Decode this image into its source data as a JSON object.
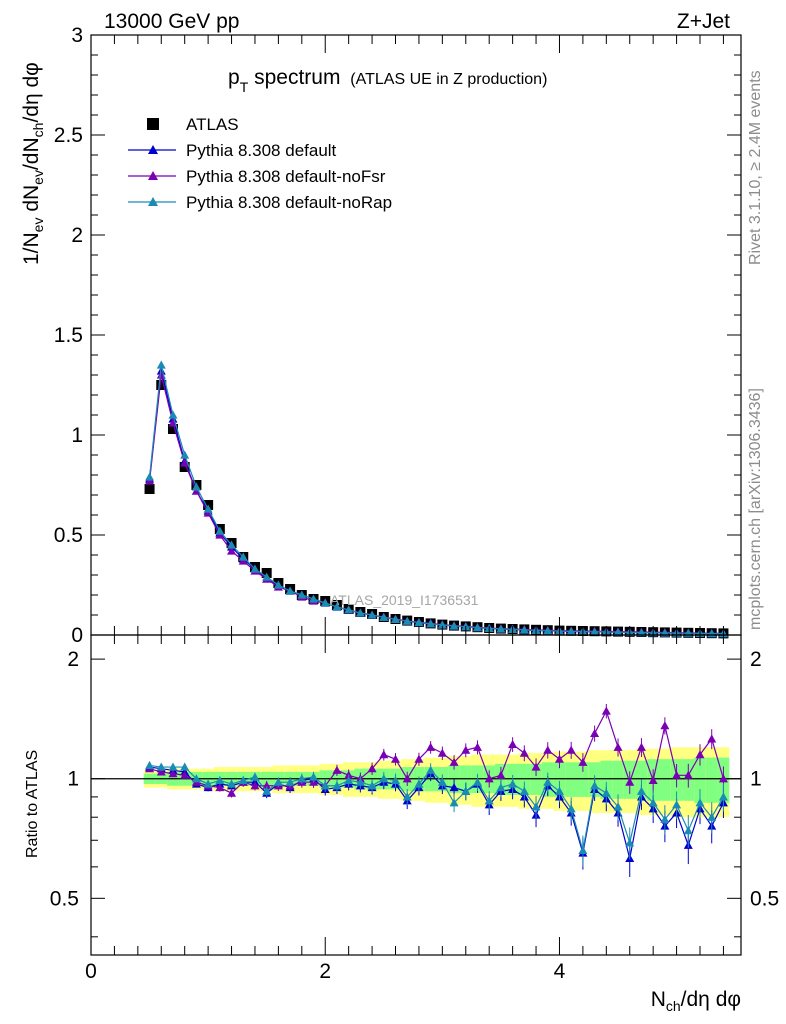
{
  "header": {
    "left": "13000 GeV pp",
    "right": "Z+Jet"
  },
  "plot_title": {
    "main": "p",
    "sub": "T",
    "main_rest": " spectrum",
    "small": "(ATLAS UE in Z production)"
  },
  "watermark": "ATLAS_2019_I1736531",
  "side_text": {
    "rivet": "Rivet 3.1.10, ≥ 2.4M events",
    "mcplots": "mcplots.cern.ch [arXiv:1306.3436]"
  },
  "ylabel_top": "1/N_ev dN_ev/dN_ch/dη dφ",
  "ylabel_top_parts": [
    "1/N",
    "ev",
    " dN",
    "ev",
    "/dN",
    "ch",
    "/dη dφ"
  ],
  "ylabel_bottom": "Ratio to ATLAS",
  "xlabel_parts": [
    "N",
    "ch",
    "/dη dφ"
  ],
  "legend": [
    {
      "label": "ATLAS",
      "marker": "square",
      "color": "#000000"
    },
    {
      "label": "Pythia 8.308 default",
      "marker": "triangle",
      "color": "#0000cc"
    },
    {
      "label": "Pythia 8.308 default-noFsr",
      "marker": "triangle",
      "color": "#7a00b3"
    },
    {
      "label": "Pythia 8.308 default-noRap",
      "marker": "triangle",
      "color": "#1a8cb3"
    }
  ],
  "chart_data": {
    "type": "line",
    "x": [
      0.5,
      0.6,
      0.7,
      0.8,
      0.9,
      1.0,
      1.1,
      1.2,
      1.3,
      1.4,
      1.5,
      1.6,
      1.7,
      1.8,
      1.9,
      2.0,
      2.1,
      2.2,
      2.3,
      2.4,
      2.5,
      2.6,
      2.7,
      2.8,
      2.9,
      3.0,
      3.1,
      3.2,
      3.3,
      3.4,
      3.5,
      3.6,
      3.7,
      3.8,
      3.9,
      4.0,
      4.1,
      4.2,
      4.3,
      4.4,
      4.5,
      4.6,
      4.7,
      4.8,
      4.9,
      5.0,
      5.1,
      5.2,
      5.3,
      5.4
    ],
    "xlim": [
      0,
      5.55
    ],
    "top": {
      "ylim": [
        0,
        3
      ],
      "yticks": [
        0,
        0.5,
        1,
        1.5,
        2,
        2.5,
        3
      ],
      "yticklabels": [
        "0",
        "0.5",
        "1",
        "1.5",
        "2",
        "2.5",
        "3"
      ],
      "data": [
        0.73,
        1.25,
        1.03,
        0.84,
        0.75,
        0.65,
        0.53,
        0.46,
        0.39,
        0.34,
        0.31,
        0.26,
        0.23,
        0.2,
        0.18,
        0.17,
        0.15,
        0.13,
        0.115,
        0.105,
        0.09,
        0.08,
        0.072,
        0.065,
        0.058,
        0.052,
        0.047,
        0.043,
        0.039,
        0.035,
        0.032,
        0.03,
        0.028,
        0.026,
        0.024,
        0.022,
        0.021,
        0.02,
        0.019,
        0.018,
        0.017,
        0.016,
        0.015,
        0.014,
        0.013,
        0.012,
        0.011,
        0.01,
        0.009,
        0.008
      ],
      "series": [
        {
          "name": "Pythia 8.308 default",
          "color": "#0000cc",
          "values": [
            0.78,
            1.32,
            1.08,
            0.87,
            0.72,
            0.62,
            0.51,
            0.44,
            0.38,
            0.33,
            0.28,
            0.25,
            0.22,
            0.2,
            0.18,
            0.16,
            0.14,
            0.125,
            0.11,
            0.1,
            0.088,
            0.078,
            0.068,
            0.062,
            0.056,
            0.05,
            0.045,
            0.041,
            0.037,
            0.033,
            0.03,
            0.028,
            0.025,
            0.023,
            0.021,
            0.019,
            0.018,
            0.017,
            0.016,
            0.015,
            0.014,
            0.013,
            0.012,
            0.011,
            0.01,
            0.009,
            0.009,
            0.008,
            0.007,
            0.007
          ]
        },
        {
          "name": "Pythia 8.308 default-noFsr",
          "color": "#7a00b3",
          "values": [
            0.77,
            1.3,
            1.06,
            0.86,
            0.72,
            0.61,
            0.5,
            0.42,
            0.37,
            0.32,
            0.28,
            0.24,
            0.22,
            0.19,
            0.17,
            0.16,
            0.14,
            0.125,
            0.11,
            0.1,
            0.09,
            0.08,
            0.07,
            0.064,
            0.058,
            0.052,
            0.047,
            0.043,
            0.039,
            0.035,
            0.032,
            0.03,
            0.028,
            0.026,
            0.024,
            0.022,
            0.021,
            0.02,
            0.019,
            0.018,
            0.017,
            0.016,
            0.015,
            0.014,
            0.013,
            0.012,
            0.011,
            0.01,
            0.009,
            0.008
          ]
        },
        {
          "name": "Pythia 8.308 default-noRap",
          "color": "#1a8cb3",
          "values": [
            0.79,
            1.35,
            1.1,
            0.9,
            0.74,
            0.63,
            0.52,
            0.45,
            0.39,
            0.33,
            0.29,
            0.25,
            0.22,
            0.2,
            0.18,
            0.16,
            0.14,
            0.126,
            0.11,
            0.1,
            0.088,
            0.078,
            0.069,
            0.062,
            0.056,
            0.05,
            0.045,
            0.041,
            0.037,
            0.033,
            0.03,
            0.028,
            0.025,
            0.023,
            0.021,
            0.019,
            0.018,
            0.017,
            0.016,
            0.015,
            0.014,
            0.013,
            0.012,
            0.011,
            0.01,
            0.009,
            0.009,
            0.008,
            0.007,
            0.007
          ]
        }
      ]
    },
    "bottom": {
      "ylabel": "Ratio to ATLAS",
      "ylim": [
        0.36,
        2.3
      ],
      "yticks": [
        0.5,
        1,
        2
      ],
      "yticklabels": [
        "0.5",
        "1",
        "2"
      ],
      "band_inner": [
        0.03,
        0.03,
        0.04,
        0.04,
        0.04,
        0.04,
        0.04,
        0.04,
        0.04,
        0.04,
        0.04,
        0.04,
        0.04,
        0.04,
        0.04,
        0.05,
        0.05,
        0.05,
        0.06,
        0.06,
        0.06,
        0.06,
        0.07,
        0.07,
        0.07,
        0.07,
        0.08,
        0.08,
        0.08,
        0.08,
        0.09,
        0.09,
        0.09,
        0.09,
        0.1,
        0.1,
        0.1,
        0.1,
        0.1,
        0.11,
        0.11,
        0.11,
        0.11,
        0.12,
        0.12,
        0.12,
        0.12,
        0.13,
        0.13,
        0.13
      ],
      "band_outer": [
        0.05,
        0.05,
        0.06,
        0.06,
        0.06,
        0.06,
        0.07,
        0.07,
        0.07,
        0.07,
        0.07,
        0.08,
        0.08,
        0.08,
        0.08,
        0.09,
        0.09,
        0.1,
        0.1,
        0.1,
        0.11,
        0.11,
        0.12,
        0.12,
        0.13,
        0.13,
        0.14,
        0.14,
        0.15,
        0.15,
        0.15,
        0.15,
        0.16,
        0.16,
        0.16,
        0.17,
        0.17,
        0.17,
        0.18,
        0.18,
        0.18,
        0.18,
        0.19,
        0.19,
        0.19,
        0.2,
        0.2,
        0.2,
        0.2,
        0.2
      ],
      "series": [
        {
          "name": "Pythia 8.308 default",
          "color": "#0000cc",
          "values": [
            1.07,
            1.06,
            1.05,
            1.04,
            0.97,
            0.95,
            0.97,
            0.96,
            0.98,
            0.98,
            0.92,
            0.97,
            0.95,
            0.99,
            1.0,
            0.94,
            0.95,
            0.97,
            0.96,
            0.95,
            0.98,
            0.97,
            0.88,
            0.95,
            1.03,
            0.96,
            0.95,
            0.93,
            0.97,
            0.86,
            0.93,
            0.94,
            0.9,
            0.81,
            0.96,
            0.9,
            0.82,
            0.65,
            0.94,
            0.89,
            0.82,
            0.63,
            0.9,
            0.84,
            0.76,
            0.82,
            0.68,
            0.84,
            0.76,
            0.87
          ]
        },
        {
          "name": "Pythia 8.308 default-noFsr",
          "color": "#7a00b3",
          "values": [
            1.06,
            1.04,
            1.03,
            1.02,
            0.98,
            0.96,
            0.95,
            0.92,
            0.98,
            0.96,
            0.96,
            0.96,
            0.96,
            0.98,
            0.98,
            0.96,
            1.05,
            1.02,
            1.0,
            1.06,
            1.15,
            1.12,
            1.0,
            1.12,
            1.2,
            1.16,
            1.1,
            1.18,
            1.2,
            1.0,
            1.02,
            1.22,
            1.16,
            1.07,
            1.18,
            1.12,
            1.18,
            1.1,
            1.3,
            1.48,
            1.2,
            0.98,
            1.2,
            0.99,
            1.36,
            1.02,
            1.02,
            1.15,
            1.26,
            1.0
          ]
        },
        {
          "name": "Pythia 8.308 default-noRap",
          "color": "#1a8cb3",
          "values": [
            1.08,
            1.07,
            1.07,
            1.07,
            1.0,
            0.97,
            0.99,
            0.97,
            0.99,
            1.01,
            0.93,
            0.98,
            0.98,
            1.0,
            1.01,
            0.96,
            0.96,
            0.99,
            0.98,
            0.96,
            1.0,
            0.99,
            0.9,
            0.97,
            1.05,
            0.98,
            0.87,
            0.93,
            0.98,
            0.88,
            0.95,
            0.97,
            0.93,
            0.85,
            0.98,
            0.93,
            0.84,
            0.66,
            0.96,
            0.92,
            0.85,
            0.69,
            0.93,
            0.87,
            0.79,
            0.86,
            0.74,
            0.87,
            0.8,
            0.9
          ]
        }
      ]
    },
    "xticks": [
      0,
      2,
      4
    ],
    "xticklabels": [
      "0",
      "2",
      "4"
    ]
  }
}
